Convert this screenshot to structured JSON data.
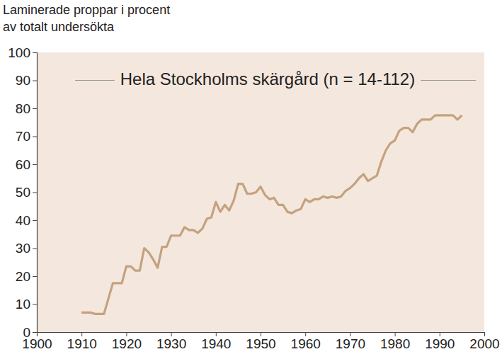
{
  "chart_data": {
    "type": "line",
    "title": "Hela Stockholms skärgård (n = 14-112)",
    "ylabel": [
      "Laminerade proppar i procent",
      "av totalt undersökta"
    ],
    "x": [
      1910,
      1911,
      1912,
      1913,
      1914,
      1915,
      1916,
      1917,
      1918,
      1919,
      1920,
      1921,
      1922,
      1923,
      1924,
      1925,
      1926,
      1927,
      1928,
      1929,
      1930,
      1931,
      1932,
      1933,
      1934,
      1935,
      1936,
      1937,
      1938,
      1939,
      1940,
      1941,
      1942,
      1943,
      1944,
      1945,
      1946,
      1947,
      1948,
      1949,
      1950,
      1951,
      1952,
      1953,
      1954,
      1955,
      1956,
      1957,
      1958,
      1959,
      1960,
      1961,
      1962,
      1963,
      1964,
      1965,
      1966,
      1967,
      1968,
      1969,
      1970,
      1971,
      1972,
      1973,
      1974,
      1975,
      1976,
      1977,
      1978,
      1979,
      1980,
      1981,
      1982,
      1983,
      1984,
      1985,
      1986,
      1987,
      1988,
      1989,
      1990,
      1991,
      1992,
      1993,
      1994,
      1995
    ],
    "values": [
      7,
      7,
      7,
      6.5,
      6.5,
      6.5,
      12,
      17.5,
      17.5,
      17.5,
      23.5,
      23.5,
      22,
      22,
      30,
      28.5,
      26,
      23,
      30.5,
      30.5,
      34.5,
      34.5,
      34.5,
      37.5,
      36.5,
      36.5,
      35.5,
      37,
      40.5,
      41,
      46.5,
      43,
      45.5,
      43.5,
      47,
      53,
      53,
      49.5,
      49.5,
      50,
      52,
      49,
      47.5,
      48,
      45.5,
      45.5,
      43,
      42.5,
      43.5,
      44,
      47.5,
      46.5,
      47.5,
      47.5,
      48.5,
      48,
      48.5,
      48,
      48.5,
      50.5,
      51.5,
      53,
      55,
      56.5,
      54,
      55,
      56,
      61,
      65,
      67.5,
      68.5,
      72,
      73,
      73,
      71.5,
      74.5,
      76,
      76,
      76,
      77.5,
      77.5,
      77.5,
      77.5,
      77.5,
      76,
      77.5
    ],
    "color": "#c4a27f",
    "xlim": [
      1900,
      2000
    ],
    "xticks": [
      1900,
      1910,
      1920,
      1930,
      1940,
      1950,
      1960,
      1970,
      1980,
      1990,
      2000
    ],
    "ylim": [
      0,
      100
    ],
    "yticks": [
      0,
      10,
      20,
      30,
      40,
      50,
      60,
      70,
      80,
      90,
      100
    ],
    "grid": false
  }
}
